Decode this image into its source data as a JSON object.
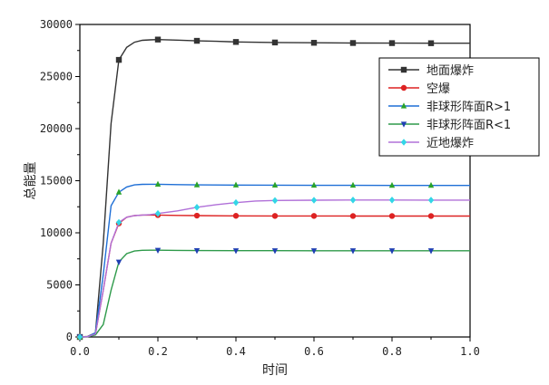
{
  "chart_data": {
    "type": "line",
    "title": "",
    "xlabel": "时间",
    "ylabel": "总能量",
    "xlim": [
      0.0,
      1.0
    ],
    "ylim": [
      0,
      30000
    ],
    "xticks": [
      0.0,
      0.2,
      0.4,
      0.6,
      0.8,
      1.0
    ],
    "xtick_labels": [
      "0.0",
      "0.2",
      "0.4",
      "0.6",
      "0.8",
      "1.0"
    ],
    "yticks": [
      0,
      5000,
      10000,
      15000,
      20000,
      25000,
      30000
    ],
    "ytick_labels": [
      "0",
      "5000",
      "10000",
      "15000",
      "20000",
      "25000",
      "30000"
    ],
    "grid": false,
    "legend_position": "top-right",
    "series": [
      {
        "name": "地面爆炸",
        "color": "#333333",
        "marker": "square",
        "x": [
          0.0,
          0.02,
          0.04,
          0.06,
          0.08,
          0.1,
          0.12,
          0.14,
          0.16,
          0.18,
          0.2,
          0.25,
          0.3,
          0.35,
          0.4,
          0.5,
          0.6,
          0.7,
          0.8,
          0.9,
          1.0
        ],
        "y": [
          0,
          50,
          400,
          9000,
          20500,
          26600,
          27800,
          28300,
          28480,
          28520,
          28550,
          28500,
          28430,
          28380,
          28320,
          28270,
          28240,
          28220,
          28210,
          28200,
          28200
        ],
        "marker_x": [
          0.0,
          0.1,
          0.2,
          0.3,
          0.4,
          0.5,
          0.6,
          0.7,
          0.8,
          0.9
        ],
        "marker_y": [
          0,
          26600,
          28550,
          28430,
          28320,
          28270,
          28240,
          28220,
          28210,
          28200
        ]
      },
      {
        "name": "空爆",
        "color": "#dd2222",
        "marker": "circle",
        "x": [
          0.0,
          0.02,
          0.04,
          0.06,
          0.08,
          0.1,
          0.12,
          0.14,
          0.16,
          0.18,
          0.2,
          0.25,
          0.3,
          0.4,
          0.5,
          0.6,
          0.7,
          0.8,
          0.9,
          1.0
        ],
        "y": [
          0,
          30,
          300,
          4500,
          9000,
          10900,
          11500,
          11650,
          11700,
          11700,
          11700,
          11670,
          11650,
          11630,
          11620,
          11620,
          11610,
          11610,
          11610,
          11610
        ],
        "marker_x": [
          0.0,
          0.1,
          0.2,
          0.3,
          0.4,
          0.5,
          0.6,
          0.7,
          0.8,
          0.9
        ],
        "marker_y": [
          0,
          10900,
          11700,
          11650,
          11630,
          11620,
          11620,
          11610,
          11610,
          11610
        ]
      },
      {
        "name": "非球形阵面R>1",
        "color": "#2aa32a",
        "stroke": "#1f6fd6",
        "marker": "triangle-up",
        "x": [
          0.0,
          0.02,
          0.04,
          0.06,
          0.08,
          0.1,
          0.12,
          0.14,
          0.16,
          0.18,
          0.2,
          0.25,
          0.3,
          0.4,
          0.5,
          0.6,
          0.7,
          0.8,
          0.9,
          1.0
        ],
        "y": [
          0,
          30,
          400,
          6000,
          12600,
          13900,
          14400,
          14600,
          14650,
          14660,
          14660,
          14630,
          14600,
          14580,
          14570,
          14560,
          14560,
          14550,
          14550,
          14550
        ],
        "marker_x": [
          0.0,
          0.1,
          0.2,
          0.3,
          0.4,
          0.5,
          0.6,
          0.7,
          0.8,
          0.9
        ],
        "marker_y": [
          0,
          13900,
          14660,
          14600,
          14580,
          14570,
          14560,
          14560,
          14550,
          14550
        ]
      },
      {
        "name": "非球形阵面R<1",
        "color": "#1f3fb3",
        "stroke": "#2e9a4a",
        "marker": "triangle-down",
        "x": [
          0.0,
          0.02,
          0.04,
          0.06,
          0.08,
          0.1,
          0.12,
          0.14,
          0.16,
          0.18,
          0.2,
          0.25,
          0.3,
          0.4,
          0.5,
          0.6,
          0.7,
          0.8,
          0.9,
          1.0
        ],
        "y": [
          0,
          20,
          200,
          1200,
          4500,
          7200,
          8000,
          8250,
          8320,
          8330,
          8330,
          8310,
          8300,
          8290,
          8290,
          8280,
          8280,
          8280,
          8280,
          8280
        ],
        "marker_x": [
          0.0,
          0.1,
          0.2,
          0.3,
          0.4,
          0.5,
          0.6,
          0.7,
          0.8,
          0.9
        ],
        "marker_y": [
          0,
          7200,
          8330,
          8300,
          8290,
          8290,
          8280,
          8280,
          8280,
          8280
        ]
      },
      {
        "name": "近地爆炸",
        "color": "#33d6e6",
        "stroke": "#b070d8",
        "marker": "diamond",
        "x": [
          0.0,
          0.02,
          0.04,
          0.06,
          0.08,
          0.1,
          0.12,
          0.14,
          0.16,
          0.18,
          0.2,
          0.25,
          0.3,
          0.35,
          0.4,
          0.45,
          0.5,
          0.6,
          0.7,
          0.8,
          0.9,
          1.0
        ],
        "y": [
          0,
          30,
          300,
          4500,
          9000,
          11000,
          11500,
          11650,
          11700,
          11750,
          11850,
          12100,
          12450,
          12700,
          12900,
          13050,
          13100,
          13130,
          13150,
          13150,
          13140,
          13140
        ],
        "marker_x": [
          0.0,
          0.1,
          0.2,
          0.3,
          0.4,
          0.5,
          0.6,
          0.7,
          0.8,
          0.9
        ],
        "marker_y": [
          0,
          11000,
          11850,
          12450,
          12900,
          13100,
          13130,
          13150,
          13150,
          13140
        ]
      }
    ]
  }
}
